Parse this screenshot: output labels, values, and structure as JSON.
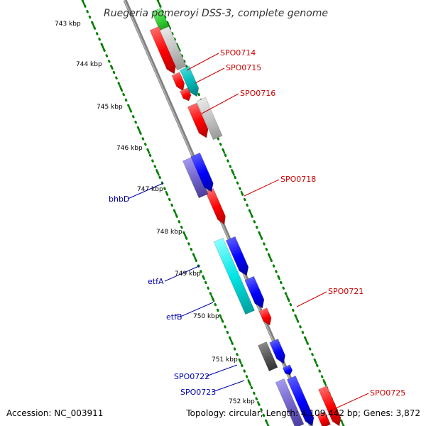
{
  "title": "Ruegeria pomeroyi DSS-3, complete genome",
  "accession": "Accession: NC_003911",
  "summary": "Topology: circular; Length: 4,109,442 bp; Genes: 3,872",
  "kbp_labels": [
    "743 kbp",
    "744 kbp",
    "745 kbp",
    "746 kbp",
    "747 kbp",
    "748 kbp",
    "749 kbp",
    "750 kbp",
    "751 kbp",
    "752 kbp"
  ],
  "gene_labels": {
    "right": [
      "SPO0714",
      "SPO0715",
      "SPO0716",
      "SPO0718",
      "SPO0721",
      "SPO0725"
    ],
    "left": [
      "bhbD",
      "etfA",
      "etfB",
      "SPO0722",
      "SPO0723"
    ]
  },
  "colors": {
    "forward_strand": "#ff0000",
    "reverse_strand": "#0000ff",
    "right_label": "#cc0000",
    "left_label": "#0000aa",
    "tick": "#008000",
    "backbone": "#808080"
  }
}
